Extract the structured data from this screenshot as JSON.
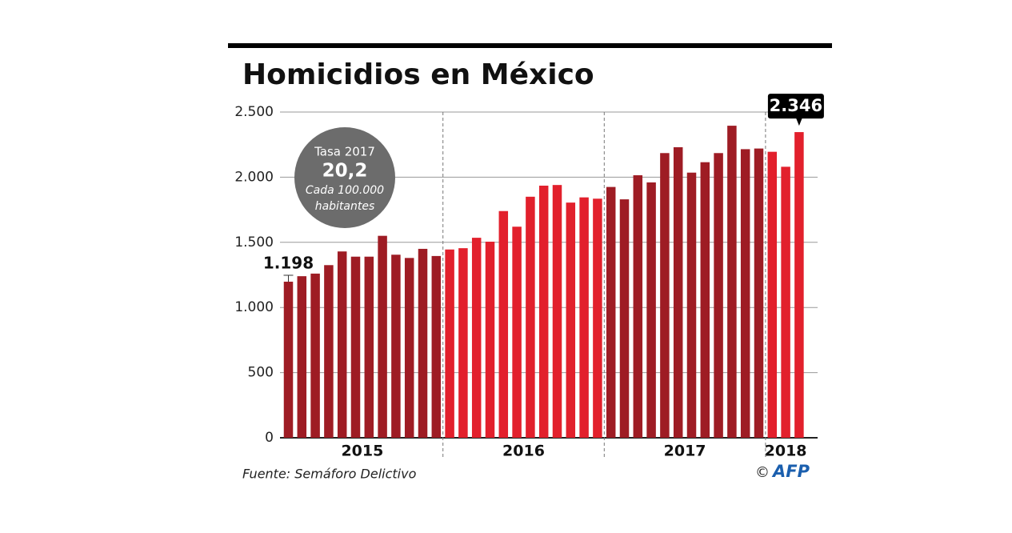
{
  "chart_data": {
    "type": "bar",
    "title": "Homicidios en México",
    "groups": [
      {
        "label": "2015",
        "color": "#9e1c24",
        "values": [
          1198,
          1240,
          1260,
          1325,
          1430,
          1390,
          1390,
          1550,
          1405,
          1380,
          1450,
          1395
        ],
        "value_labels": [
          "1.198",
          null,
          null,
          null,
          null,
          null,
          null,
          null,
          null,
          null,
          null,
          null
        ]
      },
      {
        "label": "2016",
        "color": "#e2202c",
        "values": [
          1445,
          1455,
          1535,
          1505,
          1740,
          1620,
          1850,
          1935,
          1940,
          1805,
          1845,
          1835
        ]
      },
      {
        "label": "2017",
        "color": "#9e1c24",
        "values": [
          1925,
          1830,
          2015,
          1960,
          2185,
          2230,
          2035,
          2115,
          2185,
          2395,
          2215,
          2220
        ]
      },
      {
        "label": "2018",
        "color": "#e2202c",
        "values": [
          2195,
          2080,
          2346
        ],
        "value_labels": [
          null,
          null,
          "2.346"
        ]
      }
    ],
    "ylim": [
      0,
      2500
    ],
    "yticks": [
      0,
      500,
      {
        "value": 1000,
        "label": "1.000"
      },
      {
        "value": 1500,
        "label": "1.500"
      },
      {
        "value": 2000,
        "label": "2.000"
      },
      {
        "value": 2500,
        "label": "2.500"
      }
    ],
    "grid": true,
    "annotation": {
      "title": "Tasa 2017",
      "value": "20,2",
      "note_lines": [
        "Cada 100.000",
        "habitantes"
      ]
    },
    "source": "Fuente: Semáforo Delictivo",
    "credit": "©",
    "logo": "AFP"
  }
}
